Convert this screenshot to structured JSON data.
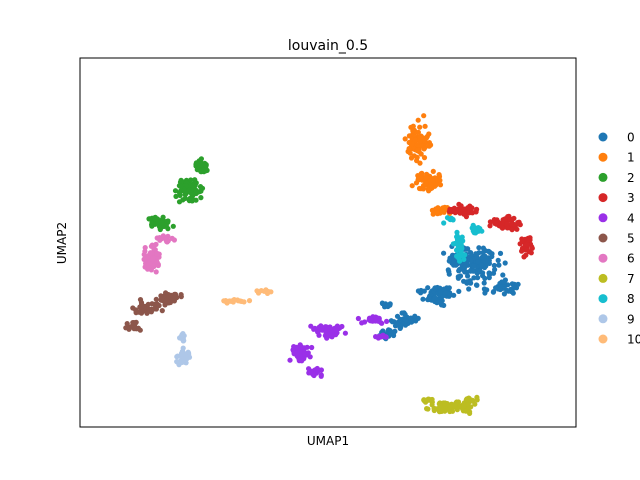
{
  "chart_data": {
    "type": "scatter",
    "title": "louvain_0.5",
    "xlabel": "UMAP1",
    "ylabel": "UMAP2",
    "xlim": [
      0,
      100
    ],
    "ylim": [
      0,
      100
    ],
    "ticks": "none",
    "grid": false,
    "legend_placement": "right",
    "series": [
      {
        "name": "0",
        "color": "#1f77b4",
        "clusters": [
          {
            "x": 82,
            "y": 43,
            "rx": 7,
            "ry": 7,
            "n": 150
          },
          {
            "x": 74,
            "y": 34,
            "rx": 5,
            "ry": 4,
            "n": 60
          },
          {
            "x": 89,
            "y": 36,
            "rx": 5,
            "ry": 3,
            "n": 40
          },
          {
            "x": 67,
            "y": 26,
            "rx": 4,
            "ry": 3,
            "n": 45
          },
          {
            "x": 63,
            "y": 22,
            "rx": 3,
            "ry": 2,
            "n": 20
          },
          {
            "x": 63,
            "y": 31,
            "rx": 1.5,
            "ry": 1.5,
            "n": 10
          }
        ]
      },
      {
        "name": "1",
        "color": "#ff7f0e",
        "clusters": [
          {
            "x": 70,
            "y": 81,
            "rx": 3,
            "ry": 8,
            "n": 90
          },
          {
            "x": 72,
            "y": 69,
            "rx": 4,
            "ry": 4,
            "n": 70
          },
          {
            "x": 75,
            "y": 60,
            "rx": 3,
            "ry": 2,
            "n": 30
          }
        ]
      },
      {
        "name": "2",
        "color": "#2ca02c",
        "clusters": [
          {
            "x": 19,
            "y": 66,
            "rx": 4,
            "ry": 5,
            "n": 80
          },
          {
            "x": 13,
            "y": 56,
            "rx": 3,
            "ry": 3,
            "n": 40
          },
          {
            "x": 22,
            "y": 73,
            "rx": 2,
            "ry": 3,
            "n": 30
          }
        ]
      },
      {
        "name": "3",
        "color": "#d62728",
        "clusters": [
          {
            "x": 80,
            "y": 60,
            "rx": 4,
            "ry": 2.5,
            "n": 50
          },
          {
            "x": 89,
            "y": 56,
            "rx": 5,
            "ry": 3,
            "n": 60
          },
          {
            "x": 94,
            "y": 49,
            "rx": 2,
            "ry": 4,
            "n": 40
          }
        ]
      },
      {
        "name": "4",
        "color": "#9a30e8",
        "clusters": [
          {
            "x": 50,
            "y": 23,
            "rx": 5,
            "ry": 2.5,
            "n": 50
          },
          {
            "x": 44,
            "y": 16,
            "rx": 3,
            "ry": 4,
            "n": 50
          },
          {
            "x": 47,
            "y": 10,
            "rx": 2,
            "ry": 2,
            "n": 20
          },
          {
            "x": 60,
            "y": 26,
            "rx": 4,
            "ry": 1.5,
            "n": 25
          },
          {
            "x": 62,
            "y": 21,
            "rx": 2,
            "ry": 1,
            "n": 10
          }
        ]
      },
      {
        "name": "5",
        "color": "#8c564b",
        "clusters": [
          {
            "x": 10,
            "y": 30,
            "rx": 4,
            "ry": 3,
            "n": 40
          },
          {
            "x": 15,
            "y": 33,
            "rx": 4,
            "ry": 2.5,
            "n": 40
          },
          {
            "x": 7,
            "y": 24,
            "rx": 2.5,
            "ry": 2,
            "n": 15
          }
        ]
      },
      {
        "name": "6",
        "color": "#e377c2",
        "clusters": [
          {
            "x": 11,
            "y": 45,
            "rx": 3,
            "ry": 5,
            "n": 60
          },
          {
            "x": 14,
            "y": 51,
            "rx": 3,
            "ry": 2,
            "n": 20
          }
        ]
      },
      {
        "name": "7",
        "color": "#bcbd22",
        "clusters": [
          {
            "x": 77,
            "y": -0.5,
            "rx": 7,
            "ry": 2.2,
            "n": 80
          },
          {
            "x": 72,
            "y": 1.5,
            "rx": 2,
            "ry": 1,
            "n": 10
          },
          {
            "x": 82,
            "y": 1.5,
            "rx": 2.5,
            "ry": 1.2,
            "n": 12
          }
        ]
      },
      {
        "name": "8",
        "color": "#17becf",
        "clusters": [
          {
            "x": 79,
            "y": 49,
            "rx": 1.5,
            "ry": 5,
            "n": 40
          },
          {
            "x": 83,
            "y": 54,
            "rx": 2,
            "ry": 1.5,
            "n": 15
          },
          {
            "x": 77,
            "y": 57,
            "rx": 2,
            "ry": 1.2,
            "n": 8
          }
        ]
      },
      {
        "name": "9",
        "color": "#aec7e8",
        "clusters": [
          {
            "x": 18,
            "y": 15,
            "rx": 2,
            "ry": 3,
            "n": 40
          },
          {
            "x": 18,
            "y": 21,
            "rx": 1,
            "ry": 2,
            "n": 12
          }
        ]
      },
      {
        "name": "10",
        "color": "#ffbb78",
        "clusters": [
          {
            "x": 30,
            "y": 32,
            "rx": 5,
            "ry": 0.8,
            "n": 18
          },
          {
            "x": 36,
            "y": 35,
            "rx": 2.5,
            "ry": 1,
            "n": 12
          }
        ]
      }
    ]
  }
}
